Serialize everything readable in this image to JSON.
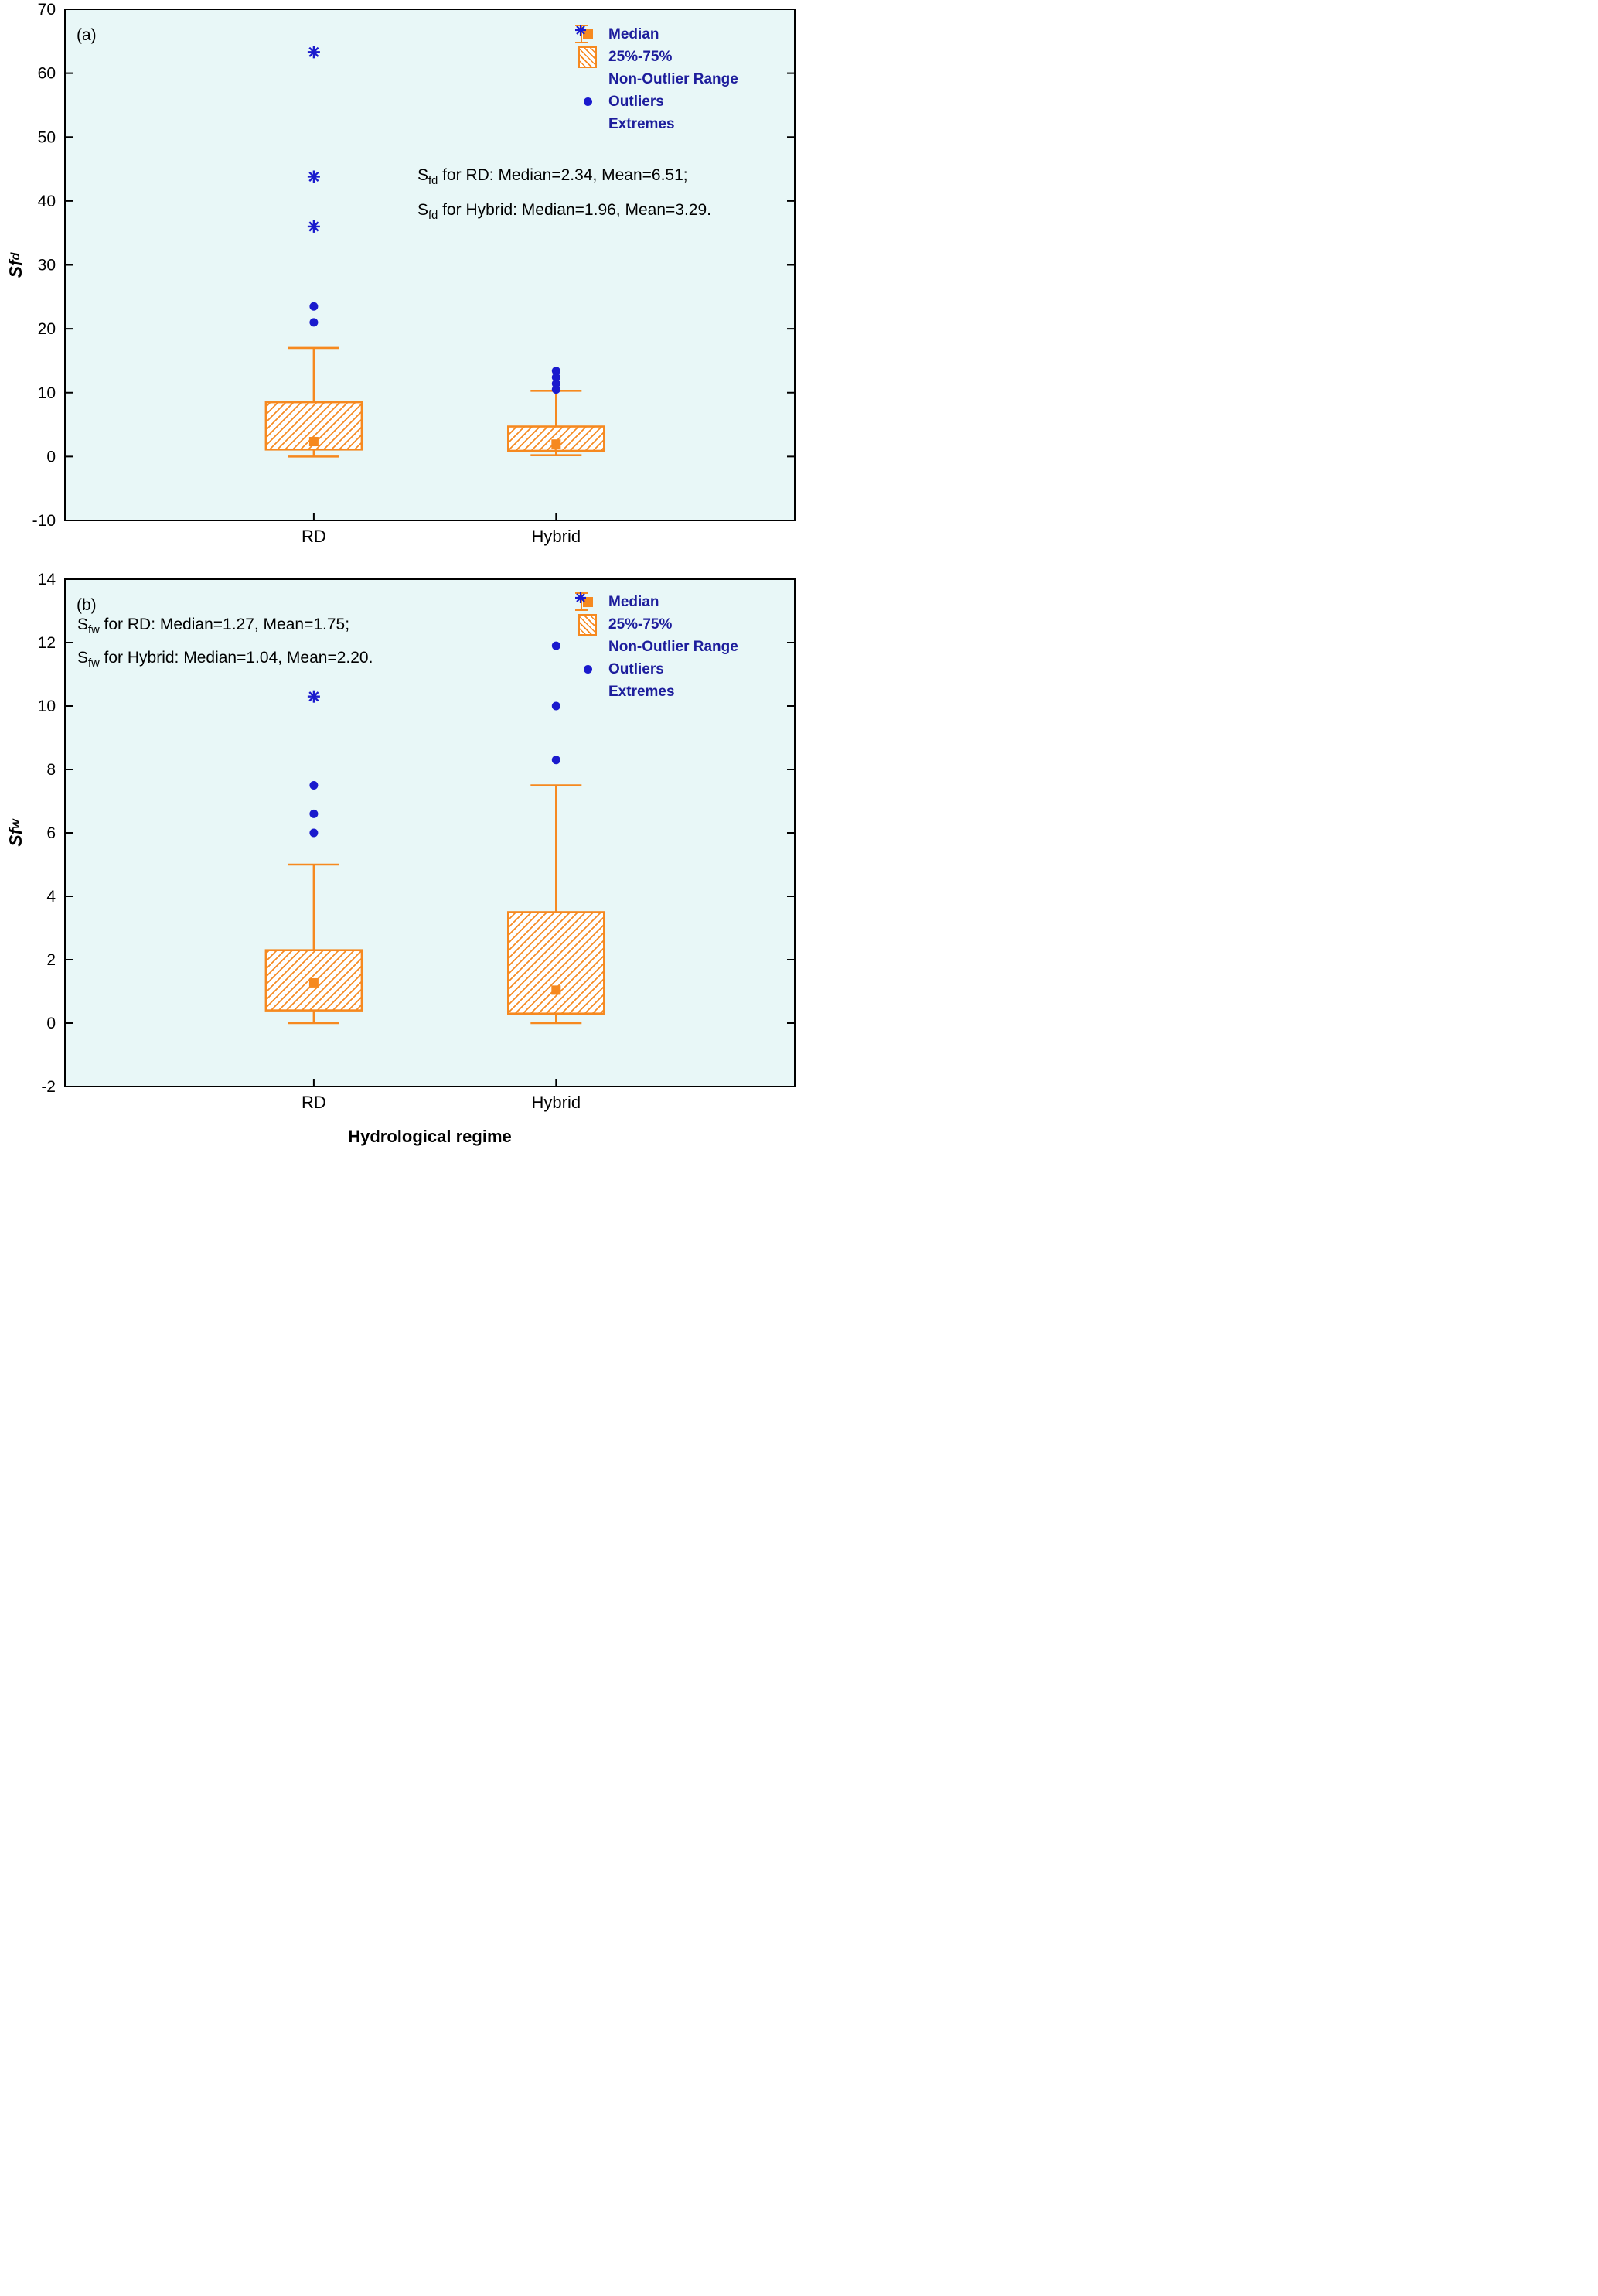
{
  "chart_data": [
    {
      "type": "boxplot",
      "panel_label": "(a)",
      "ylabel_base": "Sf",
      "ylabel_sub": "d",
      "ylim": [
        -10,
        70
      ],
      "ytick_step": 10,
      "grid": false,
      "legend_position": "top-right-inside",
      "categories": [
        "RD",
        "Hybrid"
      ],
      "series": [
        {
          "name": "RD",
          "whisker_low": 0,
          "q1": 1.1,
          "median": 2.34,
          "q3": 8.5,
          "whisker_high": 17,
          "outliers": [
            21,
            23.5
          ],
          "extremes": [
            36,
            43.8,
            63.3
          ]
        },
        {
          "name": "Hybrid",
          "whisker_low": 0.2,
          "q1": 0.9,
          "median": 1.96,
          "q3": 4.7,
          "whisker_high": 10.3,
          "outliers": [
            10.5,
            11.4,
            12.4,
            13.4
          ],
          "extremes": []
        }
      ],
      "annotation_lines": [
        {
          "base": "S",
          "sub": "fd",
          "rest": " for RD: Median=2.34, Mean=6.51;"
        },
        {
          "base": "S",
          "sub": "fd",
          "rest": " for Hybrid: Median=1.96, Mean=3.29."
        }
      ],
      "legend": [
        "Median",
        "25%-75%",
        "Non-Outlier Range",
        "Outliers",
        "Extremes"
      ],
      "stats": {
        "RD": {
          "median": 2.34,
          "mean": 6.51
        },
        "Hybrid": {
          "median": 1.96,
          "mean": 3.29
        }
      }
    },
    {
      "type": "boxplot",
      "panel_label": "(b)",
      "xlabel": "Hydrological regime",
      "ylabel_base": "Sf",
      "ylabel_sub": "w",
      "ylim": [
        -2,
        14
      ],
      "ytick_step": 2,
      "grid": false,
      "legend_position": "top-right-inside",
      "categories": [
        "RD",
        "Hybrid"
      ],
      "series": [
        {
          "name": "RD",
          "whisker_low": 0,
          "q1": 0.4,
          "median": 1.27,
          "q3": 2.3,
          "whisker_high": 5.0,
          "outliers": [
            6.0,
            6.6,
            7.5
          ],
          "extremes": [
            10.3
          ]
        },
        {
          "name": "Hybrid",
          "whisker_low": 0,
          "q1": 0.3,
          "median": 1.04,
          "q3": 3.5,
          "whisker_high": 7.5,
          "outliers": [
            8.3,
            10.0,
            11.9
          ],
          "extremes": []
        }
      ],
      "annotation_lines": [
        {
          "base": "S",
          "sub": "fw",
          "rest": " for RD: Median=1.27, Mean=1.75;"
        },
        {
          "base": "S",
          "sub": "fw",
          "rest": " for Hybrid: Median=1.04, Mean=2.20."
        }
      ],
      "legend": [
        "Median",
        "25%-75%",
        "Non-Outlier Range",
        "Outliers",
        "Extremes"
      ],
      "stats": {
        "RD": {
          "median": 1.27,
          "mean": 1.75
        },
        "Hybrid": {
          "median": 1.04,
          "mean": 2.2
        }
      }
    }
  ],
  "colors": {
    "plot_bg": "#e8f7f7",
    "orange": "#f6891f",
    "blue": "#1a1acd",
    "legend_text": "#1d1d9c",
    "axis": "#000000"
  }
}
